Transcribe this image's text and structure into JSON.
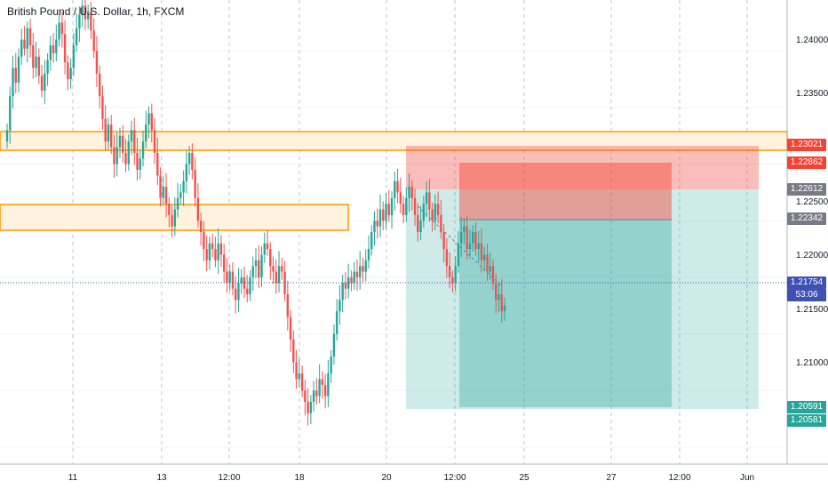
{
  "header": {
    "title": "British Pound / U.S. Dollar, 1h, FXCM"
  },
  "price_axis": {
    "labels": [
      "1.24000",
      "1.23500",
      "1.22500",
      "1.22000",
      "1.21500",
      "1.21000"
    ]
  },
  "time_axis": {
    "labels": [
      "11",
      "13",
      "12:00",
      "18",
      "20",
      "12:00",
      "25",
      "27",
      "12:00",
      "Jun"
    ]
  },
  "price_tags": {
    "stop_outer": "1.23021",
    "stop_inner": "1.22862",
    "entry_outer": "1.22612",
    "entry_inner": "1.22342",
    "last_price": "1.21754",
    "countdown": "53:06",
    "target_inner": "1.20591",
    "target_outer": "1.20581"
  },
  "colors": {
    "up_candle": "#26a69a",
    "down_candle": "#ef5350",
    "zone_border": "#ff9800",
    "zone_fill": "#fff3e0",
    "risk": "#f44336",
    "reward": "#26a69a",
    "entry_tag": "#787b86",
    "last_price_tag": "#3f51b5"
  },
  "chart_data": {
    "type": "candlestick",
    "instrument": "British Pound / U.S. Dollar",
    "timeframe": "1h",
    "ylim": [
      1.2035,
      1.2445
    ],
    "closes": [
      1.233,
      1.236,
      1.2385,
      1.2372,
      1.2395,
      1.241,
      1.2402,
      1.242,
      1.2405,
      1.2385,
      1.2395,
      1.2378,
      1.2365,
      1.238,
      1.2392,
      1.2405,
      1.2398,
      1.241,
      1.2425,
      1.2415,
      1.239,
      1.2375,
      1.2385,
      1.2405,
      1.242,
      1.2432,
      1.244,
      1.2428,
      1.2435,
      1.2418,
      1.24,
      1.238,
      1.236,
      1.234,
      1.232,
      1.2335,
      1.2315,
      1.23,
      1.2315,
      1.2325,
      1.231,
      1.23,
      1.232,
      1.233,
      1.231,
      1.2295,
      1.2305,
      1.232,
      1.2335,
      1.2345,
      1.233,
      1.231,
      1.229,
      1.227,
      1.228,
      1.2265,
      1.2255,
      1.2245,
      1.226,
      1.227,
      1.2275,
      1.2285,
      1.23,
      1.231,
      1.2295,
      1.227,
      1.225,
      1.224,
      1.2225,
      1.2215,
      1.223,
      1.2225,
      1.2215,
      1.223,
      1.222,
      1.2205,
      1.2195,
      1.2205,
      1.219,
      1.218,
      1.2195,
      1.22,
      1.219,
      1.2185,
      1.22,
      1.221,
      1.2215,
      1.22,
      1.222,
      1.223,
      1.2225,
      1.221,
      1.2205,
      1.2195,
      1.221,
      1.2205,
      1.2185,
      1.2165,
      1.2145,
      1.2125,
      1.211,
      1.2115,
      1.21,
      1.209,
      1.208,
      1.209,
      1.21,
      1.2095,
      1.211,
      1.2105,
      1.2095,
      1.2115,
      1.213,
      1.215,
      1.217,
      1.218,
      1.2195,
      1.219,
      1.22,
      1.2195,
      1.2205,
      1.22,
      1.221,
      1.2205,
      1.2215,
      1.2225,
      1.224,
      1.225,
      1.2245,
      1.226,
      1.225,
      1.2265,
      1.2255,
      1.227,
      1.2285,
      1.2275,
      1.2265,
      1.2255,
      1.227,
      1.228,
      1.227,
      1.2255,
      1.224,
      1.225,
      1.2265,
      1.2275,
      1.226,
      1.225,
      1.2265,
      1.2255,
      1.224,
      1.2225,
      1.221,
      1.22,
      1.2195,
      1.221,
      1.223,
      1.224,
      1.2245,
      1.2225,
      1.223,
      1.224,
      1.2225,
      1.223,
      1.2215,
      1.222,
      1.2205,
      1.221,
      1.2195,
      1.218,
      1.2185,
      1.217,
      1.2175
    ]
  }
}
